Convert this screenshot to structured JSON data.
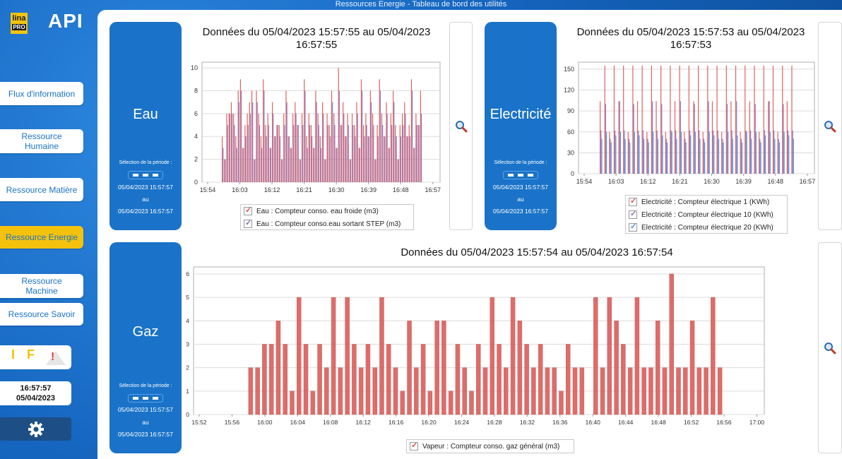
{
  "app": {
    "title": "Ressources Energie -  Tableau de bord des utilités",
    "logo_lina": "lina",
    "logo_pro": "PRO",
    "logo_api": "API"
  },
  "sidebar": {
    "items": [
      {
        "label": "Flux d'information"
      },
      {
        "label": "Ressource Humaine"
      },
      {
        "label": "Ressource Matière"
      },
      {
        "label": "Ressource Energie",
        "active": true
      },
      {
        "label": "Ressource Machine"
      },
      {
        "label": "Ressource Savoir"
      }
    ],
    "indicators": {
      "i": "I",
      "f": "F",
      "warn": "!"
    },
    "clock": {
      "time": "16:57:57",
      "date": "05/04/2023"
    },
    "settings_icon": "gear-icon"
  },
  "colors": {
    "accent": "#1a73c8",
    "active": "#f4c20d",
    "red_series": "#d9534f",
    "purple_series": "#8e6fb8",
    "blue_series": "#4a90d9"
  },
  "panels": {
    "eau": {
      "name": "Eau",
      "period_label": "Sélection de la période :",
      "from": "05/04/2023 15:57:57",
      "to_word": "au",
      "to": "05/04/2023 16:57:57",
      "chart_title": "Données du 05/04/2023 15:57:55 au 05/04/2023 16:57:55",
      "legend": [
        "Eau : Compteur conso. eau froide (m3)",
        "Eau : Compteur conso.eau sortant STEP (m3)"
      ]
    },
    "elec": {
      "name": "Electricité",
      "period_label": "Sélection de la période :",
      "from": "05/04/2023 15:57:57",
      "to_word": "au",
      "to": "05/04/2023 16:57:57",
      "chart_title": "Données du 05/04/2023 15:57:53 au 05/04/2023 16:57:53",
      "legend": [
        "Electricité : Compteur électrique 1 (KWh)",
        "Electricité : Compteur électrique 10 (KWh)",
        "Electricité : Compteur électrique 20 (KWh)"
      ]
    },
    "gaz": {
      "name": "Gaz",
      "period_label": "Sélection de la période :",
      "from": "05/04/2023 15:57:57",
      "to_word": "au",
      "to": "05/04/2023 16:57:57",
      "chart_title": "Données du 05/04/2023 15:57:54 au 05/04/2023 16:57:54",
      "legend": [
        "Vapeur : Compteur conso. gaz général (m3)"
      ]
    }
  },
  "chart_data": [
    {
      "type": "bar",
      "id": "eau",
      "xticks": [
        "15:54",
        "16:03",
        "16:12",
        "16:21",
        "16:30",
        "16:39",
        "16:48",
        "16:57"
      ],
      "yticks": [
        0,
        2,
        4,
        6,
        8,
        10
      ],
      "ylim": [
        0,
        10.5
      ],
      "series": [
        {
          "name": "Eau : Compteur conso. eau froide (m3)",
          "values": [
            4,
            2,
            6,
            6,
            7,
            6,
            4,
            8,
            9,
            3,
            5,
            6,
            7,
            8,
            2,
            8,
            6,
            4,
            9,
            5,
            6,
            3,
            7,
            4,
            5,
            5,
            2,
            6,
            8,
            4,
            3,
            6,
            7,
            5,
            2,
            6,
            9,
            4,
            6,
            5,
            3,
            8,
            6,
            4,
            7,
            2,
            6,
            5,
            8,
            6,
            3,
            10,
            5,
            7,
            4,
            6,
            2,
            6,
            5,
            7,
            3,
            9,
            5,
            6,
            4,
            8,
            6,
            2,
            5,
            9,
            6,
            4,
            7,
            3,
            6,
            8,
            5,
            2,
            5,
            6,
            7,
            4,
            5,
            9,
            3,
            6,
            5,
            8
          ]
        },
        {
          "name": "Eau : Compteur conso.eau sortant STEP (m3)",
          "values": [
            3,
            2,
            5,
            6,
            6,
            5,
            3,
            7,
            8,
            3,
            4,
            5,
            6,
            7,
            2,
            7,
            5,
            3,
            8,
            4,
            5,
            3,
            6,
            4,
            5,
            4,
            2,
            5,
            7,
            4,
            3,
            5,
            6,
            5,
            2,
            5,
            8,
            3,
            5,
            4,
            3,
            7,
            5,
            3,
            6,
            2,
            5,
            4,
            7,
            5,
            3,
            8,
            5,
            6,
            4,
            5,
            2,
            5,
            4,
            6,
            3,
            8,
            4,
            5,
            4,
            7,
            5,
            2,
            4,
            8,
            5,
            4,
            6,
            3,
            5,
            7,
            4,
            2,
            4,
            5,
            6,
            4,
            4,
            8,
            3,
            5,
            5,
            6
          ]
        }
      ]
    },
    {
      "type": "bar",
      "id": "elec",
      "xticks": [
        "15:54",
        "16:03",
        "16:12",
        "16:21",
        "16:30",
        "16:39",
        "16:48",
        "16:57"
      ],
      "yticks": [
        0,
        30,
        60,
        90,
        120,
        150
      ],
      "ylim": [
        0,
        160
      ],
      "series": [
        {
          "name": "Electricité : Compteur électrique 1 (KWh)",
          "values": [
            104,
            155,
            60,
            155,
            104,
            155,
            60,
            155,
            104,
            155,
            60,
            155,
            104,
            155,
            60,
            155,
            104,
            155,
            60,
            155,
            104,
            155,
            60,
            155,
            104,
            155,
            60,
            155,
            104,
            155,
            60,
            155,
            104,
            155,
            60,
            155,
            104,
            155,
            60,
            155,
            104,
            155
          ]
        },
        {
          "name": "Electricité : Compteur électrique 10 (KWh)",
          "values": [
            62,
            100,
            50,
            62,
            104,
            62,
            50,
            100,
            62,
            62,
            50,
            104,
            62,
            100,
            50,
            62,
            62,
            104,
            50,
            62,
            100,
            62,
            50,
            104,
            62,
            62,
            50,
            100,
            62,
            104,
            50,
            62,
            62,
            100,
            50,
            62,
            104,
            62,
            50,
            100,
            62,
            62
          ]
        },
        {
          "name": "Electricité : Compteur électrique 20 (KWh)",
          "values": [
            50,
            60,
            45,
            55,
            60,
            50,
            45,
            60,
            55,
            50,
            45,
            60,
            50,
            55,
            45,
            60,
            50,
            60,
            45,
            55,
            60,
            50,
            45,
            60,
            55,
            50,
            45,
            60,
            50,
            55,
            45,
            60,
            50,
            60,
            45,
            55,
            60,
            50,
            45,
            60,
            55,
            50
          ]
        }
      ]
    },
    {
      "type": "bar",
      "id": "gaz",
      "xticks": [
        "15:52",
        "15:56",
        "16:00",
        "16:04",
        "16:08",
        "16:12",
        "16:16",
        "16:20",
        "16:24",
        "16:28",
        "16:32",
        "16:36",
        "16:40",
        "16:44",
        "16:48",
        "16:52",
        "16:56",
        "17:00"
      ],
      "yticks": [
        0,
        1,
        2,
        3,
        4,
        5,
        6
      ],
      "ylim": [
        0,
        6.3
      ],
      "series": [
        {
          "name": "Vapeur : Compteur conso. gaz général (m3)",
          "values": [
            2,
            2,
            3,
            3,
            4,
            3,
            1,
            5,
            3,
            1,
            3,
            2,
            5,
            2,
            5,
            3,
            2,
            3,
            2,
            5,
            3,
            2,
            1,
            4,
            2,
            3,
            1,
            4,
            4,
            1,
            3,
            2,
            1,
            3,
            2,
            5,
            3,
            2,
            5,
            4,
            3,
            2,
            3,
            2,
            2,
            1,
            3,
            2,
            2,
            0,
            5,
            2,
            5,
            4,
            3,
            2,
            5,
            2,
            2,
            4,
            2,
            6,
            2,
            2,
            4,
            2,
            2,
            5,
            2
          ]
        }
      ]
    }
  ]
}
